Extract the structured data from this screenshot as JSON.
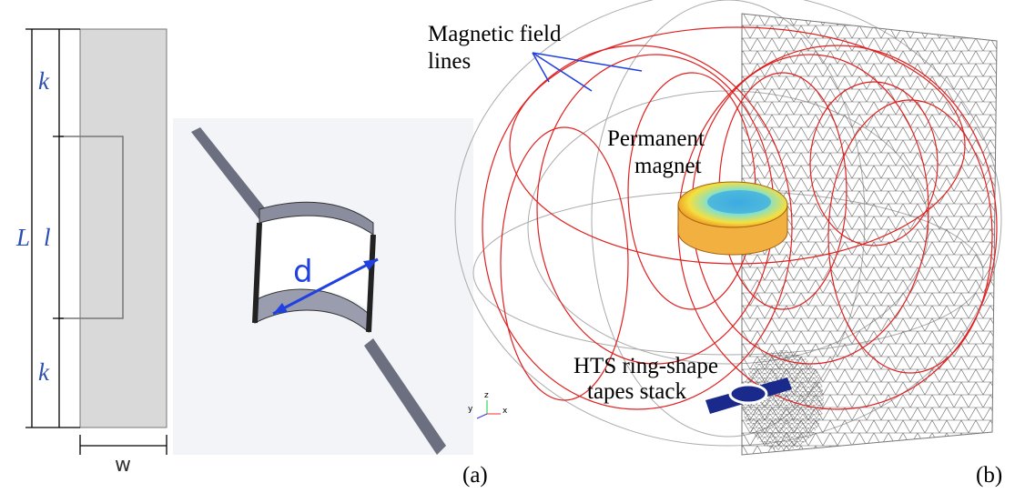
{
  "panel_a": {
    "dimensions": {
      "total_length": "L",
      "top_segment": "k",
      "slot_length": "l",
      "bottom_segment": "k",
      "width": "w"
    },
    "diameter_label": "d",
    "caption": "(a)"
  },
  "panel_b": {
    "labels": {
      "field_lines": [
        "Magnetic field",
        "lines"
      ],
      "magnet": [
        "Permanent",
        "magnet"
      ],
      "stack": [
        "HTS ring-shape",
        "tapes stack"
      ]
    },
    "axes": [
      "y",
      "z",
      "x"
    ],
    "caption": "(b)"
  }
}
